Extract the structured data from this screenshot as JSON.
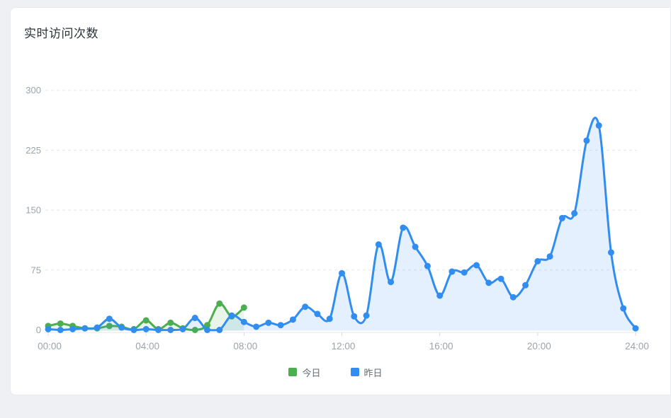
{
  "card": {
    "title": "实时访问次数"
  },
  "chart_data": {
    "type": "line",
    "title": "实时访问次数",
    "x": [
      "00:00",
      "00:30",
      "01:00",
      "01:30",
      "02:00",
      "02:30",
      "03:00",
      "03:30",
      "04:00",
      "04:30",
      "05:00",
      "05:30",
      "06:00",
      "06:30",
      "07:00",
      "07:30",
      "08:00",
      "08:30",
      "09:00",
      "09:30",
      "10:00",
      "10:30",
      "11:00",
      "11:30",
      "12:00",
      "12:30",
      "13:00",
      "13:30",
      "14:00",
      "14:30",
      "15:00",
      "15:30",
      "16:00",
      "16:30",
      "17:00",
      "17:30",
      "18:00",
      "18:30",
      "19:00",
      "19:30",
      "20:00",
      "20:30",
      "21:00",
      "21:30",
      "22:00",
      "22:30",
      "23:00",
      "23:30",
      "24:00"
    ],
    "x_tick_labels": [
      "00:00",
      "04:00",
      "08:00",
      "12:00",
      "16:00",
      "20:00",
      "24:00"
    ],
    "y_ticks": [
      0,
      75,
      150,
      225,
      300
    ],
    "ylim": [
      0,
      300
    ],
    "grid": "horizontal-dashed",
    "smooth": true,
    "legend_position": "bottom-center",
    "axis_label_color": "#9ca3ab",
    "grid_line_color": "#e6e8ec",
    "series": [
      {
        "name": "今日",
        "color": "#4bae4f",
        "area_opacity": 0.13,
        "values": [
          5,
          8,
          5,
          2,
          2,
          5,
          4,
          1,
          12,
          1,
          9,
          2,
          0,
          6,
          33,
          17,
          28
        ]
      },
      {
        "name": "昨日",
        "color": "#318df0",
        "area_opacity": 0.13,
        "values": [
          1,
          0,
          1,
          2,
          3,
          14,
          3,
          0,
          1,
          0,
          0,
          1,
          15,
          0,
          0,
          18,
          10,
          4,
          9,
          6,
          13,
          29,
          20,
          14,
          71,
          17,
          18,
          107,
          60,
          128,
          104,
          80,
          43,
          73,
          72,
          81,
          59,
          64,
          41,
          56,
          86,
          92,
          140,
          146,
          237,
          256,
          97,
          27,
          2
        ]
      }
    ]
  }
}
